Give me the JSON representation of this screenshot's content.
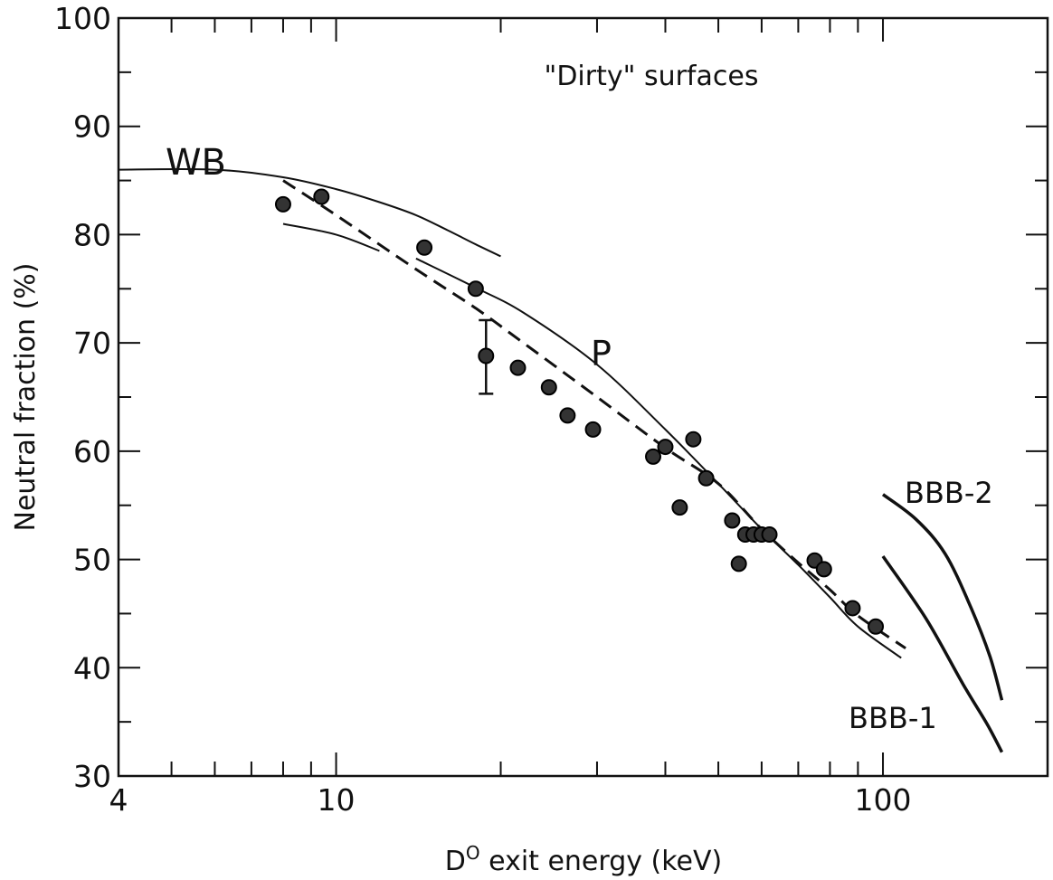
{
  "chart_data": {
    "type": "scatter",
    "title": "\"Dirty\" surfaces",
    "xlabel_prefix": "D",
    "xlabel_sup": "O",
    "xlabel_suffix": " exit energy (keV)",
    "ylabel": "Neutral fraction (%)",
    "x_scale": "log",
    "xlim": [
      4,
      200
    ],
    "ylim": [
      30,
      100
    ],
    "x_tick_labels": [
      {
        "value": 4,
        "label": "4"
      },
      {
        "value": 10,
        "label": "10"
      },
      {
        "value": 100,
        "label": "100"
      }
    ],
    "y_tick_labels": [
      {
        "value": 30,
        "label": "30"
      },
      {
        "value": 40,
        "label": "40"
      },
      {
        "value": 50,
        "label": "50"
      },
      {
        "value": 60,
        "label": "60"
      },
      {
        "value": 70,
        "label": "70"
      },
      {
        "value": 80,
        "label": "80"
      },
      {
        "value": 90,
        "label": "90"
      },
      {
        "value": 100,
        "label": "100"
      }
    ],
    "grid": false,
    "points": [
      {
        "x": 8.0,
        "y": 82.8
      },
      {
        "x": 9.4,
        "y": 83.5
      },
      {
        "x": 14.5,
        "y": 78.8
      },
      {
        "x": 18.0,
        "y": 75.0
      },
      {
        "x": 18.8,
        "y": 68.8
      },
      {
        "x": 21.5,
        "y": 67.7
      },
      {
        "x": 24.5,
        "y": 65.9
      },
      {
        "x": 26.5,
        "y": 63.3
      },
      {
        "x": 29.5,
        "y": 62.0
      },
      {
        "x": 38.0,
        "y": 59.5
      },
      {
        "x": 40.0,
        "y": 60.4
      },
      {
        "x": 42.5,
        "y": 54.8
      },
      {
        "x": 45.0,
        "y": 61.1
      },
      {
        "x": 47.5,
        "y": 57.5
      },
      {
        "x": 53.0,
        "y": 53.6
      },
      {
        "x": 54.5,
        "y": 49.6
      },
      {
        "x": 56.0,
        "y": 52.3
      },
      {
        "x": 58.0,
        "y": 52.3
      },
      {
        "x": 60.0,
        "y": 52.3
      },
      {
        "x": 62.0,
        "y": 52.3
      },
      {
        "x": 75.0,
        "y": 49.9
      },
      {
        "x": 78.0,
        "y": 49.1
      },
      {
        "x": 88.0,
        "y": 45.5
      },
      {
        "x": 97.0,
        "y": 43.8
      }
    ],
    "error_bar": {
      "x": 18.8,
      "low": 65.3,
      "high": 72.1
    },
    "curves": [
      {
        "label": "WB",
        "style": "solid",
        "points": [
          [
            4,
            86.0
          ],
          [
            6,
            86.0
          ],
          [
            8,
            85.3
          ],
          [
            10,
            84.2
          ],
          [
            12,
            83.0
          ],
          [
            14,
            81.8
          ],
          [
            16,
            80.4
          ],
          [
            18,
            79.1
          ],
          [
            20,
            78.0
          ]
        ]
      },
      {
        "label": "",
        "style": "solid",
        "points": [
          [
            8,
            81.0
          ],
          [
            10,
            80.0
          ],
          [
            12,
            78.5
          ]
        ]
      },
      {
        "label": "P",
        "style": "solid",
        "points": [
          [
            14,
            77.8
          ],
          [
            18,
            75.1
          ],
          [
            22,
            72.8
          ],
          [
            30,
            68.0
          ],
          [
            40,
            62.0
          ],
          [
            50,
            57.0
          ],
          [
            60,
            52.8
          ],
          [
            70,
            49.5
          ],
          [
            80,
            46.5
          ],
          [
            90,
            43.8
          ],
          [
            108,
            40.9
          ]
        ]
      },
      {
        "label": "",
        "style": "dashed",
        "points": [
          [
            8,
            85.0
          ],
          [
            10,
            81.8
          ],
          [
            14,
            76.8
          ],
          [
            18,
            73.2
          ],
          [
            22,
            70.0
          ],
          [
            30,
            65.0
          ],
          [
            40,
            60.3
          ],
          [
            50,
            57.0
          ],
          [
            60,
            52.8
          ],
          [
            70,
            49.7
          ],
          [
            80,
            47.2
          ],
          [
            90,
            44.8
          ],
          [
            110,
            41.8
          ]
        ]
      },
      {
        "label": "BBB-2",
        "style": "solid-bold",
        "points": [
          [
            100,
            56.0
          ],
          [
            115,
            53.7
          ],
          [
            130,
            50.5
          ],
          [
            145,
            45.5
          ],
          [
            157,
            41.0
          ],
          [
            165,
            37.0
          ]
        ]
      },
      {
        "label": "BBB-1",
        "style": "solid-bold",
        "points": [
          [
            100,
            50.3
          ],
          [
            120,
            44.5
          ],
          [
            140,
            38.5
          ],
          [
            155,
            34.8
          ],
          [
            165,
            32.2
          ]
        ]
      }
    ]
  }
}
